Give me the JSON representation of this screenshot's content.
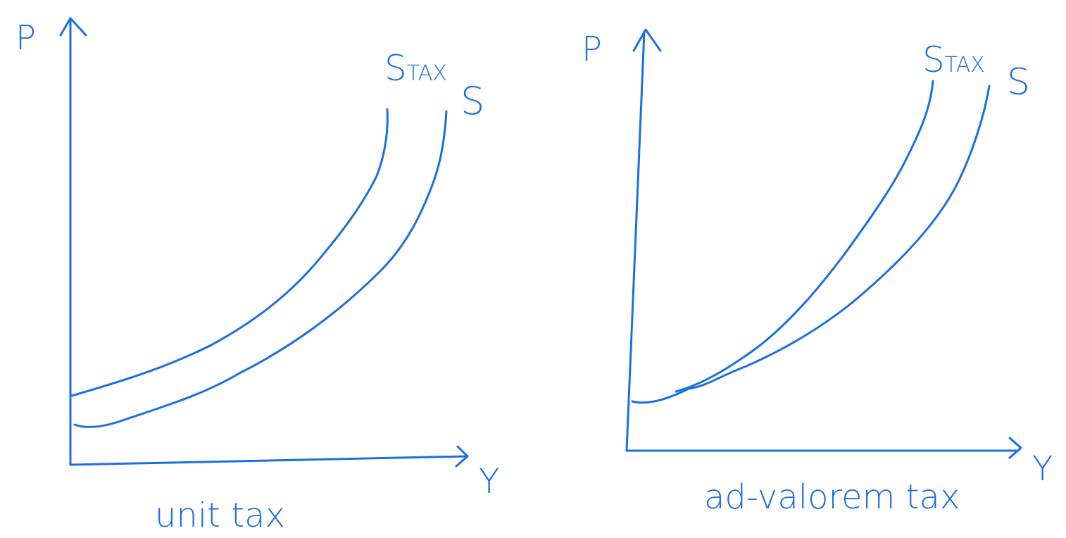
{
  "ink_color": "#1a6fe0",
  "left_diagram": {
    "y_axis_label": "P",
    "x_axis_label": "Y",
    "curve_tax_label_main": "S",
    "curve_tax_label_sub": "TAX",
    "curve_label": "S",
    "caption": "unit tax"
  },
  "right_diagram": {
    "y_axis_label": "P",
    "x_axis_label": "Y",
    "curve_tax_label_main": "S",
    "curve_tax_label_sub": "TAX",
    "curve_label": "S",
    "caption": "ad-valorem tax"
  }
}
